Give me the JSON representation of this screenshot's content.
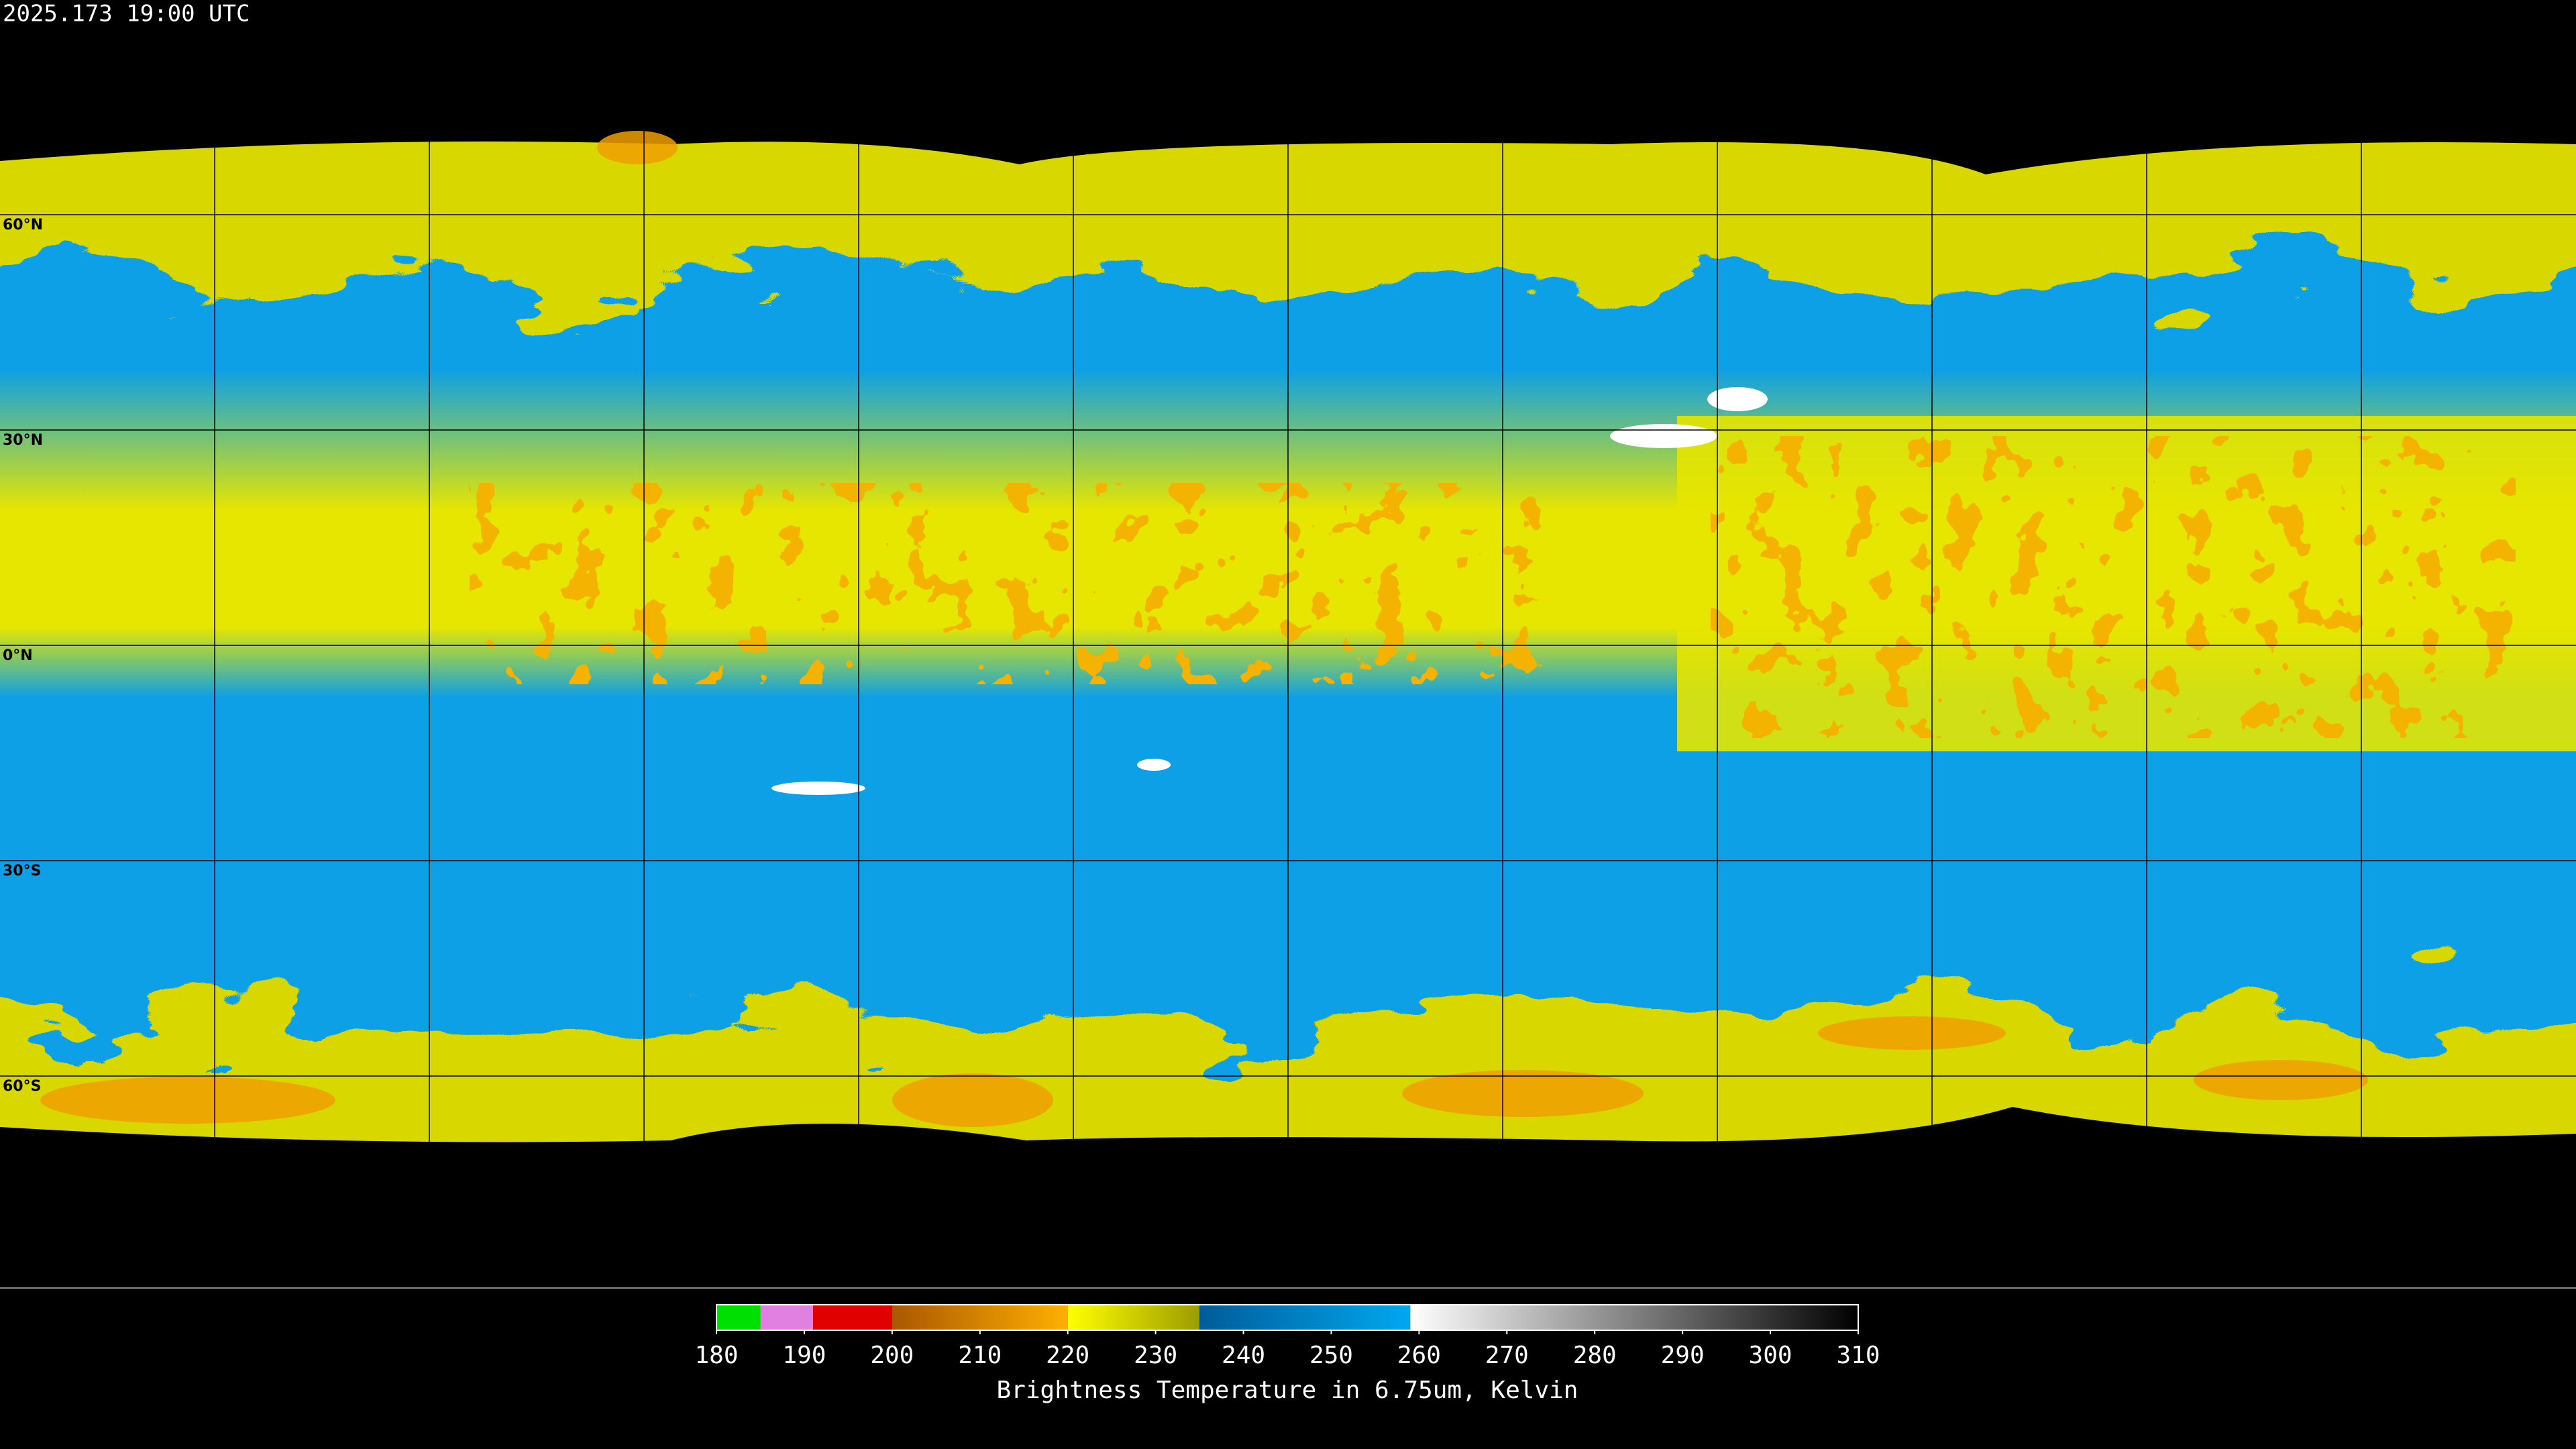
{
  "timestamp": "2025.173 19:00 UTC",
  "latitudes": [
    {
      "value": 60,
      "label": "60°N"
    },
    {
      "value": 30,
      "label": "30°N"
    },
    {
      "value": 0,
      "label": "0°N"
    },
    {
      "value": -30,
      "label": "30°S"
    },
    {
      "value": -60,
      "label": "60°S"
    }
  ],
  "colorbar": {
    "title": "Brightness Temperature in 6.75um, Kelvin",
    "range": [
      180,
      310
    ],
    "ticks": [
      180,
      190,
      200,
      210,
      220,
      230,
      240,
      250,
      260,
      270,
      280,
      290,
      300,
      310
    ],
    "segments": [
      {
        "from": 180,
        "to": 185,
        "colors": [
          "#00e000",
          "#00e000"
        ]
      },
      {
        "from": 185,
        "to": 191,
        "colors": [
          "#e080e0",
          "#e080e0"
        ]
      },
      {
        "from": 191,
        "to": 200,
        "colors": [
          "#e00000",
          "#e00000"
        ]
      },
      {
        "from": 200,
        "to": 220,
        "colors": [
          "#a85800",
          "#ffb000"
        ]
      },
      {
        "from": 220,
        "to": 235,
        "colors": [
          "#ffff00",
          "#9c9c00"
        ]
      },
      {
        "from": 235,
        "to": 259,
        "colors": [
          "#005c98",
          "#00a8f0"
        ]
      },
      {
        "from": 259,
        "to": 310,
        "colors": [
          "#ffffff",
          "#000000"
        ]
      }
    ]
  }
}
